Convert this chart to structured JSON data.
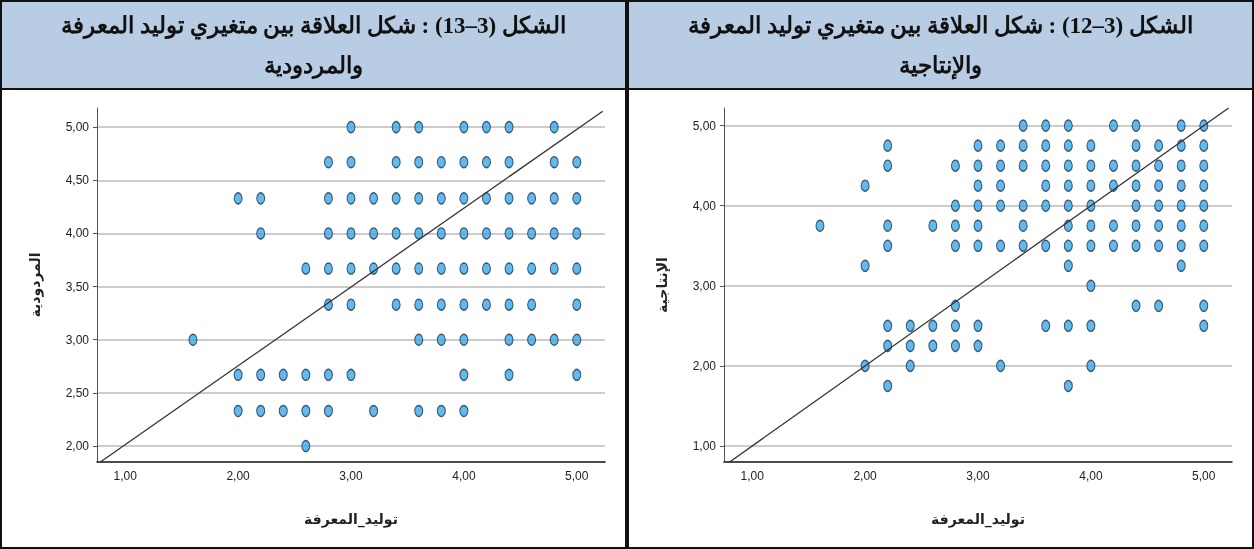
{
  "chart_data": [
    {
      "type": "scatter",
      "title": "الشكل (3–12) : شكل العلاقة بين متغيري توليد المعرفة والإنتاجية",
      "xlabel": "توليد_المعرفة",
      "ylabel": "الإنتاجية",
      "xlim": [
        0.75,
        5.25
      ],
      "ylim": [
        0.8,
        5.22
      ],
      "xticks": [
        {
          "value": 1,
          "label": "1,00"
        },
        {
          "value": 2,
          "label": "2,00"
        },
        {
          "value": 3,
          "label": "3,00"
        },
        {
          "value": 4,
          "label": "4,00"
        },
        {
          "value": 5,
          "label": "5,00"
        }
      ],
      "yticks": [
        {
          "value": 1,
          "label": "1,00"
        },
        {
          "value": 2,
          "label": "2,00"
        },
        {
          "value": 3,
          "label": "3,00"
        },
        {
          "value": 4,
          "label": "4,00"
        },
        {
          "value": 5,
          "label": "5,00"
        }
      ],
      "grid": "y",
      "marker": "circle",
      "series": [
        {
          "color": "#3ba7ea",
          "x": [
            1.6,
            2.0,
            2.0,
            2.0,
            2.2,
            2.2,
            2.2,
            2.2,
            2.2,
            2.2,
            2.2,
            2.4,
            2.4,
            2.4,
            2.6,
            2.6,
            2.6,
            2.8,
            2.8,
            2.8,
            2.8,
            2.8,
            2.8,
            2.8,
            3.0,
            3.0,
            3.0,
            3.0,
            3.0,
            3.0,
            3.0,
            3.0,
            3.2,
            3.2,
            3.2,
            3.2,
            3.2,
            3.2,
            3.4,
            3.4,
            3.4,
            3.4,
            3.4,
            3.4,
            3.6,
            3.6,
            3.6,
            3.6,
            3.6,
            3.6,
            3.6,
            3.8,
            3.8,
            3.8,
            3.8,
            3.8,
            3.8,
            3.8,
            3.8,
            3.8,
            3.8,
            4.0,
            4.0,
            4.0,
            4.0,
            4.0,
            4.0,
            4.0,
            4.0,
            4.0,
            4.2,
            4.2,
            4.2,
            4.2,
            4.2,
            4.4,
            4.4,
            4.4,
            4.4,
            4.4,
            4.4,
            4.4,
            4.4,
            4.6,
            4.6,
            4.6,
            4.6,
            4.6,
            4.6,
            4.6,
            4.8,
            4.8,
            4.8,
            4.8,
            4.8,
            4.8,
            4.8,
            4.8,
            5.0,
            5.0,
            5.0,
            5.0,
            5.0,
            5.0,
            5.0,
            5.0,
            5.0
          ],
          "values": [
            3.75,
            4.25,
            3.25,
            2.0,
            4.75,
            4.5,
            3.75,
            3.5,
            2.5,
            2.25,
            1.75,
            2.5,
            2.25,
            2.0,
            3.75,
            2.5,
            2.25,
            4.5,
            4.0,
            3.75,
            3.5,
            2.75,
            2.5,
            2.25,
            4.75,
            4.5,
            4.25,
            4.0,
            3.75,
            3.5,
            2.5,
            2.25,
            4.75,
            4.5,
            4.25,
            4.0,
            3.5,
            2.0,
            5.0,
            4.75,
            4.5,
            4.0,
            3.75,
            3.5,
            5.0,
            4.75,
            4.5,
            4.25,
            4.0,
            3.5,
            2.5,
            5.0,
            4.75,
            4.5,
            4.25,
            4.0,
            3.75,
            3.5,
            3.25,
            2.5,
            1.75,
            4.75,
            4.5,
            4.25,
            4.0,
            3.75,
            3.5,
            3.0,
            2.5,
            2.0,
            5.0,
            4.5,
            4.25,
            3.75,
            3.5,
            5.0,
            4.75,
            4.5,
            4.25,
            4.0,
            3.75,
            3.5,
            2.75,
            4.75,
            4.5,
            4.25,
            4.0,
            3.75,
            3.5,
            2.75,
            5.0,
            4.75,
            4.5,
            4.25,
            4.0,
            3.75,
            3.5,
            3.25,
            5.0,
            4.75,
            4.5,
            4.25,
            4.0,
            3.75,
            3.5,
            2.75,
            2.5
          ]
        },
        {
          "type": "line",
          "marker": "none",
          "color": "#333333",
          "x": [
            0.8,
            5.22
          ],
          "values": [
            0.8,
            5.22
          ]
        }
      ]
    },
    {
      "type": "scatter",
      "title": "الشكل (3–13) : شكل العلاقة بين متغيري توليد المعرفة والمردودية",
      "xlabel": "توليد_المعرفة",
      "ylabel": "المردودية",
      "xlim": [
        0.75,
        5.25
      ],
      "ylim": [
        1.85,
        5.18
      ],
      "xticks": [
        {
          "value": 1,
          "label": "1,00"
        },
        {
          "value": 2,
          "label": "2,00"
        },
        {
          "value": 3,
          "label": "3,00"
        },
        {
          "value": 4,
          "label": "4,00"
        },
        {
          "value": 5,
          "label": "5,00"
        }
      ],
      "yticks": [
        {
          "value": 2,
          "label": "2,00"
        },
        {
          "value": 2.5,
          "label": "2,50"
        },
        {
          "value": 3,
          "label": "3,00"
        },
        {
          "value": 3.5,
          "label": "3,50"
        },
        {
          "value": 4,
          "label": "4,00"
        },
        {
          "value": 4.5,
          "label": "4,50"
        },
        {
          "value": 5,
          "label": "5,00"
        }
      ],
      "grid": "y",
      "marker": "circle",
      "series": [
        {
          "color": "#3ba7ea",
          "x": [
            1.6,
            2.0,
            2.0,
            2.0,
            2.2,
            2.2,
            2.2,
            2.2,
            2.4,
            2.4,
            2.6,
            2.6,
            2.6,
            2.6,
            2.8,
            2.8,
            2.8,
            2.8,
            2.8,
            2.8,
            2.8,
            3.0,
            3.0,
            3.0,
            3.0,
            3.0,
            3.0,
            3.0,
            3.2,
            3.2,
            3.2,
            3.2,
            3.4,
            3.4,
            3.4,
            3.4,
            3.4,
            3.4,
            3.6,
            3.6,
            3.6,
            3.6,
            3.6,
            3.6,
            3.6,
            3.6,
            3.8,
            3.8,
            3.8,
            3.8,
            3.8,
            3.8,
            3.8,
            4.0,
            4.0,
            4.0,
            4.0,
            4.0,
            4.0,
            4.0,
            4.0,
            4.0,
            4.2,
            4.2,
            4.2,
            4.2,
            4.2,
            4.2,
            4.4,
            4.4,
            4.4,
            4.4,
            4.4,
            4.4,
            4.4,
            4.4,
            4.6,
            4.6,
            4.6,
            4.6,
            4.6,
            4.8,
            4.8,
            4.8,
            4.8,
            4.8,
            4.8,
            5.0,
            5.0,
            5.0,
            5.0,
            5.0,
            5.0,
            5.0
          ],
          "values": [
            3.0,
            4.33,
            2.67,
            2.33,
            4.33,
            4.0,
            2.67,
            2.33,
            2.67,
            2.33,
            3.67,
            2.67,
            2.33,
            2.0,
            4.67,
            4.33,
            4.0,
            3.67,
            3.33,
            2.67,
            2.33,
            5.0,
            4.67,
            4.33,
            4.0,
            3.67,
            3.33,
            2.67,
            4.33,
            4.0,
            3.67,
            2.33,
            5.0,
            4.67,
            4.33,
            4.0,
            3.67,
            3.33,
            5.0,
            4.67,
            4.33,
            4.0,
            3.67,
            3.33,
            3.0,
            2.33,
            4.67,
            4.33,
            4.0,
            3.67,
            3.33,
            3.0,
            2.33,
            5.0,
            4.67,
            4.33,
            4.0,
            3.67,
            3.33,
            3.0,
            2.67,
            2.33,
            5.0,
            4.67,
            4.33,
            4.0,
            3.67,
            3.33,
            5.0,
            4.67,
            4.33,
            4.0,
            3.67,
            3.33,
            3.0,
            2.67,
            4.33,
            4.0,
            3.67,
            3.33,
            3.0,
            5.0,
            4.67,
            4.33,
            4.0,
            3.67,
            3.0,
            4.67,
            4.33,
            4.0,
            3.67,
            3.33,
            3.0,
            2.67
          ]
        },
        {
          "type": "line",
          "marker": "none",
          "color": "#333333",
          "x": [
            0.78,
            5.23
          ],
          "values": [
            1.85,
            5.15
          ]
        }
      ]
    }
  ]
}
